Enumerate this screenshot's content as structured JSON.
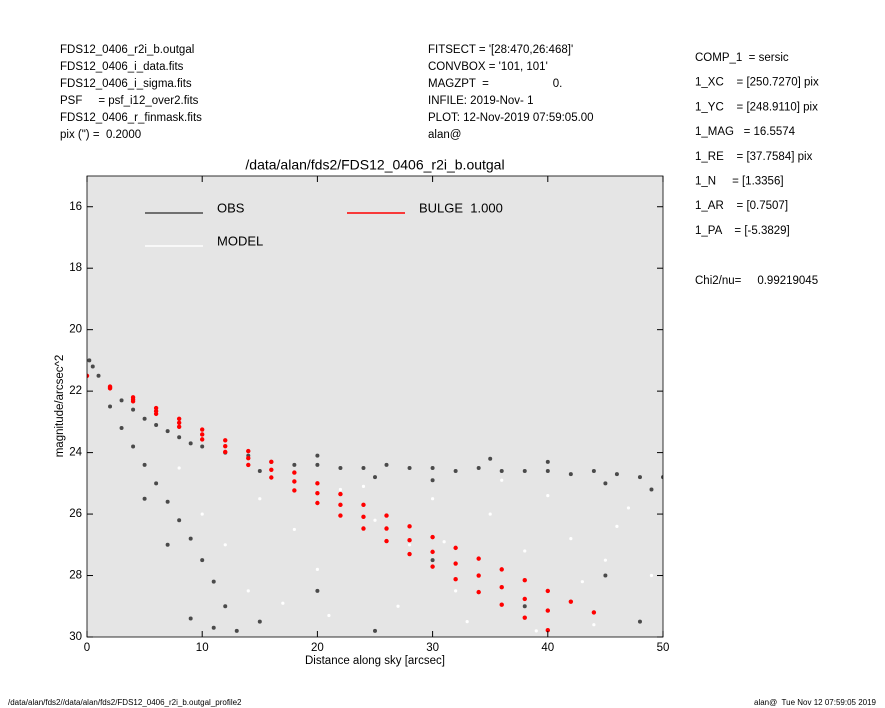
{
  "chart_data": {
    "type": "scatter",
    "title": "/data/alan/fds2/FDS12_0406_r2i_b.outgal",
    "x_label": "Distance along sky [arcsec]",
    "y_label": "magnitude/arcsec^2",
    "header_left": [
      "FDS12_0406_r2i_b.outgal",
      "FDS12_0406_i_data.fits",
      "FDS12_0406_i_sigma.fits",
      "PSF     = psf_i12_over2.fits",
      "FDS12_0406_r_finmask.fits",
      "pix (\") =  0.2000"
    ],
    "header_middle": [
      "FITSECT = '[28:470,26:468]'",
      "CONVBOX = '101, 101'",
      "MAGZPT  =                    0.",
      "INFILE: 2019-Nov- 1",
      "PLOT: 12-Nov-2019 07:59:05.00",
      "alan@"
    ],
    "header_right": [
      "COMP_1  = sersic",
      "1_XC    = [250.7270] pix",
      "1_YC    = [248.9110] pix",
      "1_MAG   = 16.5574",
      "1_RE    = [37.7584] pix",
      "1_N     = [1.3356]",
      "1_AR    = [0.7507]",
      "1_PA    = [-5.3829]"
    ],
    "chi2": "Chi2/nu=     0.99219045",
    "footer_left": "/data/alan/fds2//data/alan/fds2/FDS12_0406_r2i_b.outgal_profile2",
    "footer_right": "alan@  Tue Nov 12 07:59:05 2019",
    "xlim": [
      0,
      50
    ],
    "ylim": [
      15,
      30
    ],
    "y_inverted": true,
    "xticks": [
      0,
      10,
      20,
      30,
      40,
      50
    ],
    "yticks": [
      16,
      18,
      20,
      22,
      24,
      26,
      28,
      30
    ],
    "background": "#e5e5e5",
    "series": [
      {
        "name": "MODEL",
        "color": "#ffffff",
        "x": [
          10,
          12,
          15,
          18,
          20,
          22,
          25,
          28,
          30,
          32,
          35,
          38,
          40,
          42,
          45,
          47,
          49,
          33,
          27,
          44,
          14,
          8,
          36,
          24,
          17,
          39,
          46,
          31,
          21,
          43
        ],
        "values": [
          26,
          27,
          25.5,
          26.5,
          27.8,
          25.2,
          26.2,
          27,
          25.5,
          28.5,
          26,
          27.2,
          25.4,
          26.8,
          27.5,
          25.8,
          28,
          29.5,
          29,
          29.6,
          28.5,
          24.5,
          24.9,
          25.1,
          28.9,
          29.8,
          26.4,
          26.9,
          29.3,
          28.2
        ]
      },
      {
        "name": "OBS",
        "color": "#4a4a4a",
        "x": [
          0.2,
          0.5,
          1,
          2,
          3,
          4,
          5,
          6,
          7,
          8,
          9,
          10,
          12,
          14,
          16,
          18,
          20,
          22,
          24,
          26,
          28,
          30,
          32,
          34,
          36,
          38,
          40,
          42,
          44,
          46,
          48,
          50,
          15,
          25,
          35,
          45,
          20,
          30,
          40,
          49,
          2,
          3,
          4,
          5,
          6,
          7,
          8,
          9,
          10,
          11,
          12,
          13,
          9,
          11,
          7,
          5,
          20,
          30,
          45,
          48,
          25,
          38,
          15
        ],
        "values": [
          21,
          21.2,
          21.5,
          21.9,
          22.3,
          22.6,
          22.9,
          23.1,
          23.3,
          23.5,
          23.7,
          23.8,
          24,
          24.1,
          24.3,
          24.4,
          24.4,
          24.5,
          24.5,
          24.4,
          24.5,
          24.5,
          24.6,
          24.5,
          24.6,
          24.6,
          24.6,
          24.7,
          24.6,
          24.7,
          24.8,
          24.8,
          24.6,
          24.8,
          24.2,
          25,
          24.1,
          24.9,
          24.3,
          25.2,
          22.5,
          23.2,
          23.8,
          24.4,
          25,
          25.6,
          26.2,
          26.8,
          27.5,
          28.2,
          29,
          29.8,
          29.4,
          29.7,
          27,
          25.5,
          28.5,
          27.5,
          28,
          29.5,
          29.8,
          29,
          29.5
        ]
      },
      {
        "name": "BULGE  1.000",
        "color": "#ff0000",
        "x": [
          0,
          2,
          4,
          6,
          8,
          10,
          12,
          14,
          16,
          18,
          20,
          22,
          24,
          26,
          28,
          30,
          32,
          34,
          36,
          38,
          40,
          42,
          44,
          2,
          4,
          6,
          8,
          10,
          12,
          14,
          16,
          18,
          20,
          22,
          24,
          26,
          28,
          30,
          32,
          34,
          36,
          38,
          40,
          2,
          4,
          6,
          8,
          10,
          12,
          14,
          16,
          18,
          20,
          22,
          24,
          26,
          28,
          30,
          32,
          34,
          36,
          38,
          40
        ],
        "values": [
          21.5,
          21.85,
          22.2,
          22.55,
          22.9,
          23.25,
          23.6,
          23.95,
          24.3,
          24.65,
          25,
          25.35,
          25.7,
          26.05,
          26.4,
          26.75,
          27.1,
          27.45,
          27.8,
          28.15,
          28.5,
          28.85,
          29.2,
          21.88,
          22.27,
          22.65,
          23.03,
          23.41,
          23.79,
          24.18,
          24.56,
          24.94,
          25.32,
          25.7,
          26.09,
          26.47,
          26.85,
          27.23,
          27.61,
          28,
          28.38,
          28.76,
          29.14,
          21.91,
          22.33,
          22.74,
          23.16,
          23.57,
          23.98,
          24.4,
          24.81,
          25.23,
          25.64,
          26.05,
          26.47,
          26.88,
          27.3,
          27.71,
          28.12,
          28.54,
          28.95,
          29.37,
          29.78
        ]
      }
    ]
  }
}
